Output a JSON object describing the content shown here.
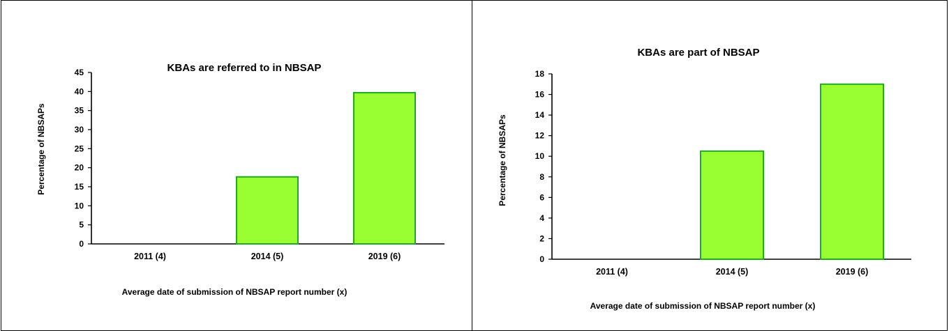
{
  "chart_data": [
    {
      "type": "bar",
      "title": "KBAs are referred to in NBSAP",
      "xlabel": "Average date of submission of NBSAP report number (x)",
      "ylabel": "Percentage of NBSAPs",
      "categories": [
        "2011 (4)",
        "2014 (5)",
        "2019 (6)"
      ],
      "values": [
        0,
        17.6,
        39.7
      ],
      "ylim": [
        0,
        45
      ],
      "yticks": [
        0,
        5,
        10,
        15,
        20,
        25,
        30,
        35,
        40,
        45
      ],
      "grid": false,
      "legend": "none",
      "bar_color": "#99ff33",
      "bar_edge_color": "#22aa22"
    },
    {
      "type": "bar",
      "title": "KBAs are part of NBSAP",
      "xlabel": "Average date of submission of NBSAP report number (x)",
      "ylabel": "Percentage of NBSAPs",
      "categories": [
        "2011 (4)",
        "2014 (5)",
        "2019 (6)"
      ],
      "values": [
        0,
        10.5,
        17
      ],
      "ylim": [
        0,
        18
      ],
      "yticks": [
        0,
        2,
        4,
        6,
        8,
        10,
        12,
        14,
        16,
        18
      ],
      "grid": false,
      "legend": "none",
      "bar_color": "#99ff33",
      "bar_edge_color": "#22aa22"
    }
  ]
}
